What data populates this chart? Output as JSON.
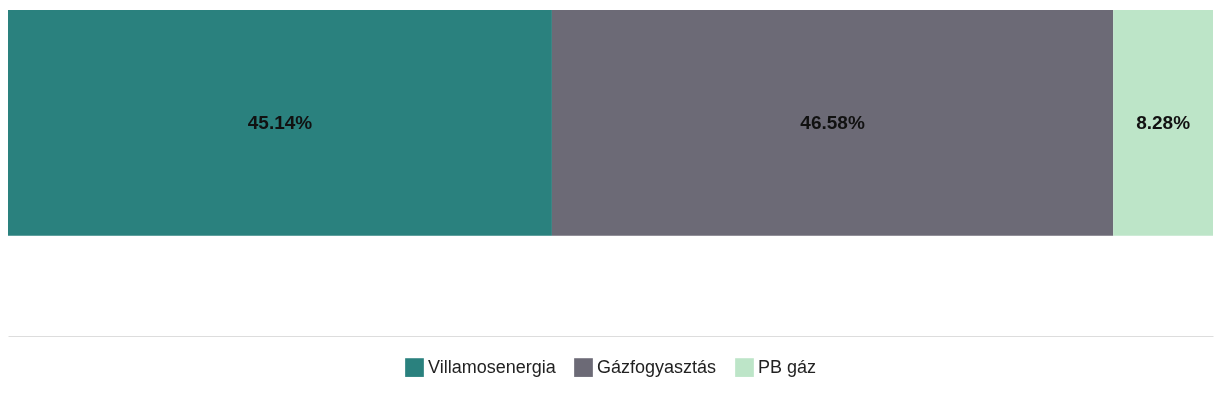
{
  "chart_data": {
    "type": "bar",
    "stacked": true,
    "orientation": "horizontal",
    "categories": [
      null
    ],
    "series": [
      {
        "name": "Villamosenergia",
        "color": "#2a817e",
        "values": [
          45.14
        ],
        "value_labels": [
          "45.14%"
        ]
      },
      {
        "name": "Gázfogyasztás",
        "color": "#6c6a76",
        "values": [
          46.58
        ],
        "value_labels": [
          "46.58%"
        ]
      },
      {
        "name": "PB gáz",
        "color": "#bde5c8",
        "values": [
          8.28
        ],
        "value_labels": [
          "8.28%"
        ]
      }
    ],
    "xlim": [
      0,
      100
    ],
    "legend": "bottom"
  }
}
